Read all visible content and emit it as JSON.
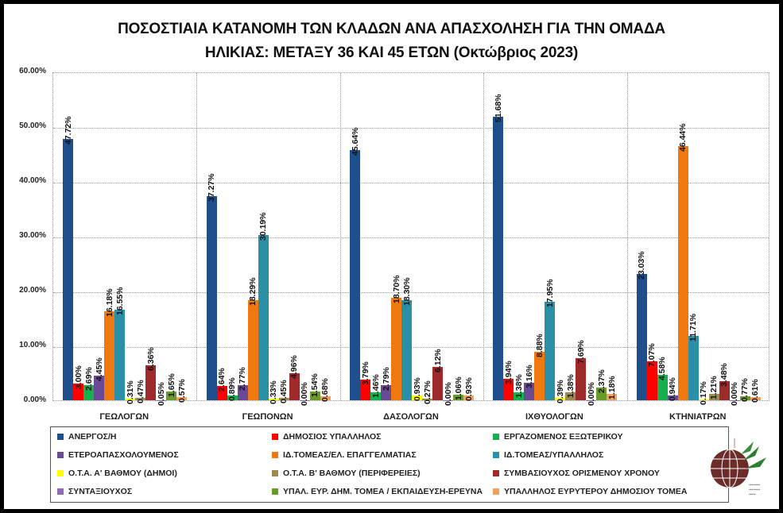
{
  "chart_data": {
    "type": "bar",
    "title": "ΠΟΣΟΣΤΙΑΙΑ ΚΑΤΑΝΟΜΗ ΤΩΝ ΚΛΑΔΩΝ ΑΝΑ ΑΠΑΣΧΟΛΗΣΗ ΓΙΑ ΤΗΝ ΟΜΑΔΑ ΗΛΙΚΙΑΣ: ΜΕΤΑΞΥ 36 ΚΑΙ 45 ΕΤΩΝ (Οκτώβριος 2023)",
    "title_line1": "ΠΟΣΟΣΤΙΑΙΑ ΚΑΤΑΝΟΜΗ ΤΩΝ ΚΛΑΔΩΝ ΑΝΑ ΑΠΑΣΧΟΛΗΣΗ ΓΙΑ ΤΗΝ ΟΜΑΔΑ",
    "title_line2": "ΗΛΙΚΙΑΣ: ΜΕΤΑΞΥ 36 ΚΑΙ 45 ΕΤΩΝ (Οκτώβριος 2023)",
    "xlabel": "",
    "ylabel": "",
    "ylim": [
      0,
      60
    ],
    "yticks": [
      "0.00%",
      "10.00%",
      "20.00%",
      "30.00%",
      "40.00%",
      "50.00%",
      "60.00%"
    ],
    "grid": true,
    "legend_position": "bottom",
    "categories": [
      "ΓΕΩΛΟΓΩΝ",
      "ΓΕΩΠΟΝΩΝ",
      "ΔΑΣΟΛΟΓΩΝ",
      "ΙΧΘΥΟΛΟΓΩΝ",
      "ΚΤΗΝΙΑΤΡΩΝ"
    ],
    "series": [
      {
        "name": "ΑΝΕΡΓΟΣ/Η",
        "color": "#1F4E8C",
        "values": [
          47.72,
          37.27,
          45.64,
          51.68,
          23.03
        ]
      },
      {
        "name": "ΔΗΜΟΣΙΟΣ ΥΠΑΛΛΗΛΟΣ",
        "color": "#FF0000",
        "values": [
          3.0,
          2.64,
          3.79,
          3.94,
          7.07
        ]
      },
      {
        "name": "ΕΡΓΑΖΟΜΕΝΟΣ ΕΞΩΤΕΡΙΚΟΥ",
        "color": "#17B04F",
        "values": [
          2.69,
          0.89,
          1.46,
          1.38,
          4.58
        ]
      },
      {
        "name": "ΕΤΕΡΟΑΠΑΣΧΟΛΟΥΜΕΝΟΣ",
        "color": "#6A4A94",
        "values": [
          4.45,
          2.77,
          2.79,
          3.16,
          0.94
        ]
      },
      {
        "name": "ΙΔ.ΤΟΜΕΑΣ/ΕΛ.  ΕΠΑΓΓΕΛΜΑΤΙΑΣ",
        "color": "#F07810",
        "values": [
          16.18,
          18.29,
          18.7,
          8.88,
          46.44
        ]
      },
      {
        "name": "ΙΔ.ΤΟΜΕΑΣ/ΥΠΑΛΛΗΛΟΣ",
        "color": "#2C8FA8",
        "values": [
          16.55,
          30.19,
          18.3,
          17.95,
          11.71
        ]
      },
      {
        "name": "Ο.Τ.Α. Α' ΒΑΘΜΟΥ (ΔΗΜΟΙ)",
        "color": "#FFFF00",
        "values": [
          0.31,
          0.33,
          0.93,
          0.39,
          0.17
        ]
      },
      {
        "name": "Ο.Τ.Α. Β' ΒΑΘΜΟΥ (ΠΕΡΙΦΕΡΕΙΕΣ)",
        "color": "#9C8A50",
        "values": [
          0.47,
          0.45,
          0.27,
          1.38,
          1.21
        ]
      },
      {
        "name": "ΣΥΜΒΑΣΙΟΥΧΟΣ  ΟΡΙΣΜΕΝΟΥ ΧΡΟΝΟΥ",
        "color": "#9E2A2B",
        "values": [
          6.36,
          4.96,
          6.12,
          7.69,
          3.48
        ]
      },
      {
        "name": "ΣΥΝΤΑΞΙΟΥΧΟΣ",
        "color": "#8E6AB8",
        "values": [
          0.05,
          0.0,
          0.0,
          0.0,
          0.0
        ]
      },
      {
        "name": "ΥΠΑΛ. ΕΥΡ. ΔΗΜ. ΤΟΜΕΑ  / ΕΚΠΑΙΔΕΥΣΗ-ΕΡΕΥΝΑ",
        "color": "#6A9A2A",
        "values": [
          1.65,
          1.54,
          1.06,
          2.37,
          0.77
        ]
      },
      {
        "name": "ΥΠΑΛΛΗΛΟΣ ΕΥΡΥΤΕΡΟΥ ΔΗΜΟΣΙΟΥ ΤΟΜΕΑ",
        "color": "#F5A05A",
        "values": [
          0.57,
          0.68,
          0.93,
          1.18,
          0.61
        ]
      }
    ]
  }
}
